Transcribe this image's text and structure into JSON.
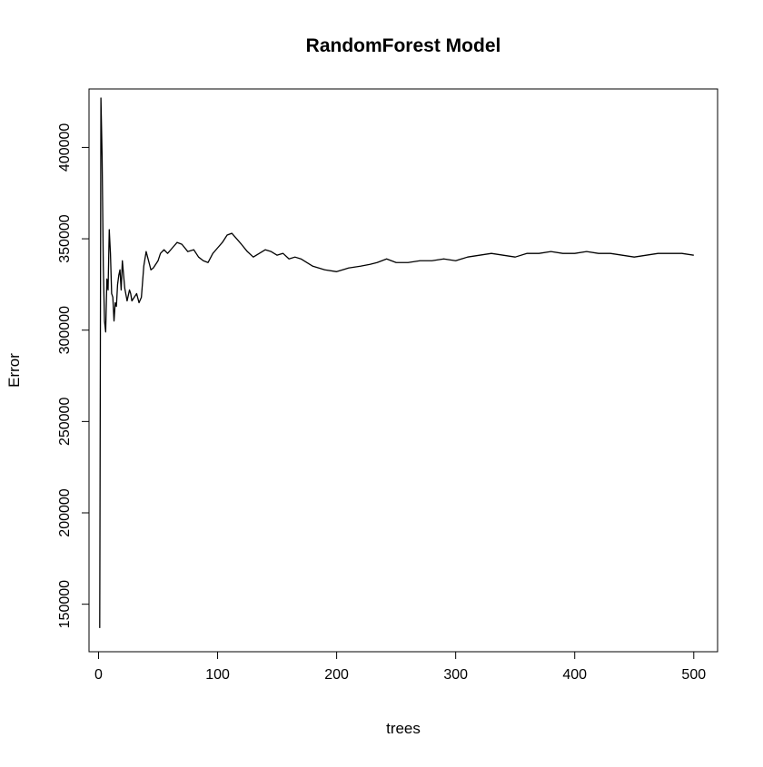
{
  "chart_data": {
    "type": "line",
    "title": "RandomForest Model",
    "xlabel": "trees",
    "ylabel": "Error",
    "xlim": [
      -8,
      520
    ],
    "ylim": [
      124000,
      432000
    ],
    "x_ticks": [
      0,
      100,
      200,
      300,
      400,
      500
    ],
    "x_tick_labels": [
      "0",
      "100",
      "200",
      "300",
      "400",
      "500"
    ],
    "y_ticks": [
      150000,
      200000,
      250000,
      300000,
      350000,
      400000
    ],
    "y_tick_labels": [
      "150000",
      "200000",
      "250000",
      "300000",
      "350000",
      "400000"
    ],
    "grid": false,
    "legend": "none",
    "line_color": "#000000",
    "series": [
      {
        "x": [
          1,
          2,
          3,
          4,
          5,
          6,
          7,
          8,
          9,
          10,
          11,
          12,
          13,
          14,
          15,
          16,
          17,
          18,
          19,
          20,
          22,
          24,
          26,
          27,
          28,
          30,
          32,
          34,
          36,
          38,
          40,
          42,
          44,
          46,
          48,
          50,
          52,
          55,
          58,
          62,
          66,
          70,
          75,
          80,
          84,
          88,
          92,
          96,
          100,
          104,
          108,
          112,
          116,
          120,
          125,
          130,
          135,
          140,
          145,
          150,
          155,
          160,
          165,
          170,
          180,
          190,
          200,
          210,
          220,
          228,
          234,
          238,
          242,
          246,
          250,
          260,
          270,
          280,
          290,
          300,
          310,
          320,
          330,
          340,
          350,
          360,
          370,
          380,
          390,
          400,
          410,
          420,
          430,
          440,
          450,
          460,
          470,
          480,
          490,
          500
        ],
        "y": [
          137000,
          427000,
          395000,
          335000,
          305000,
          299000,
          328000,
          322000,
          355000,
          342000,
          320000,
          318000,
          305000,
          315000,
          313000,
          325000,
          330000,
          333000,
          322000,
          338000,
          323000,
          316000,
          322000,
          320000,
          316000,
          318000,
          320000,
          315000,
          318000,
          335000,
          343000,
          338000,
          333000,
          334000,
          336000,
          338000,
          342000,
          344000,
          342000,
          345000,
          348000,
          347000,
          343000,
          344000,
          340000,
          338000,
          337000,
          342000,
          345000,
          348000,
          352000,
          353000,
          350000,
          347000,
          343000,
          340000,
          342000,
          344000,
          343000,
          341000,
          342000,
          339000,
          340000,
          339000,
          335000,
          333000,
          332000,
          334000,
          335000,
          336000,
          337000,
          338000,
          339000,
          338000,
          337000,
          337000,
          338000,
          338000,
          339000,
          338000,
          340000,
          341000,
          342000,
          341000,
          340000,
          342000,
          342000,
          343000,
          342000,
          342000,
          343000,
          342000,
          342000,
          341000,
          340000,
          341000,
          342000,
          342000,
          342000,
          341000
        ]
      }
    ]
  }
}
